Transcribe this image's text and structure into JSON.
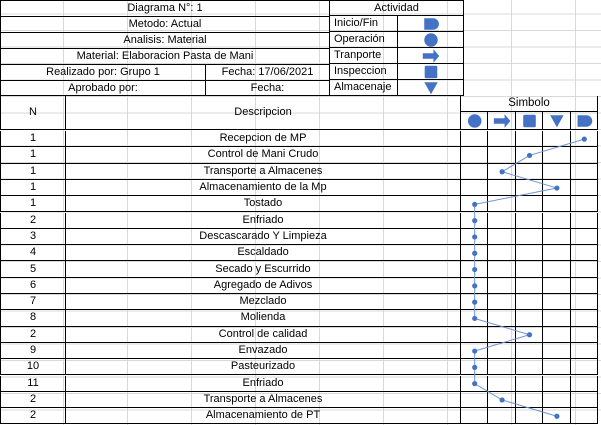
{
  "header": {
    "diagram": "Diagrama N°: 1",
    "method": "Metodo: Actual",
    "analysis": "Analisis: Material",
    "material": "Material: Elaboracion Pasta de Mani",
    "made_by": "Realizado por: Grupo 1",
    "date1": "Fecha: 17/06/2021",
    "approved_by": "Aprobado por:",
    "date2": "Fecha:"
  },
  "activity": {
    "title": "Actividad",
    "items": [
      {
        "label": "Inicio/Fin",
        "icon": "start-end-icon"
      },
      {
        "label": "Operación",
        "icon": "operation-circle-icon"
      },
      {
        "label": "Tranporte",
        "icon": "transport-arrow-icon"
      },
      {
        "label": "Inspeccion",
        "icon": "inspection-square-icon"
      },
      {
        "label": "Almacenaje",
        "icon": "storage-triangle-icon"
      }
    ]
  },
  "table": {
    "col_n": "N",
    "col_desc": "Descripcion",
    "col_symbol": "Simbolo",
    "symbol_icons": [
      "operation-circle-icon",
      "transport-arrow-icon",
      "inspection-square-icon",
      "storage-triangle-icon",
      "start-end-icon"
    ],
    "rows": [
      {
        "n": "1",
        "desc": "Recepcion de MP",
        "symbol": 4
      },
      {
        "n": "1",
        "desc": "Control de Mani Crudo",
        "symbol": 2
      },
      {
        "n": "1",
        "desc": "Transporte a Almacenes",
        "symbol": 1
      },
      {
        "n": "1",
        "desc": "Almacenamiento de la Mp",
        "symbol": 3
      },
      {
        "n": "1",
        "desc": "Tostado",
        "symbol": 0
      },
      {
        "n": "2",
        "desc": "Enfriado",
        "symbol": 0
      },
      {
        "n": "3",
        "desc": "Descascarado Y Limpieza",
        "symbol": 0
      },
      {
        "n": "4",
        "desc": "Escaldado",
        "symbol": 0
      },
      {
        "n": "5",
        "desc": "Secado y Escurrido",
        "symbol": 0
      },
      {
        "n": "6",
        "desc": "Agregado de Adivos",
        "symbol": 0
      },
      {
        "n": "7",
        "desc": "Mezclado",
        "symbol": 0
      },
      {
        "n": "8",
        "desc": "Molienda",
        "symbol": 0
      },
      {
        "n": "2",
        "desc": "Control de calidad",
        "symbol": 2
      },
      {
        "n": "9",
        "desc": "Envazado",
        "symbol": 0
      },
      {
        "n": "10",
        "desc": "Pasteurizado",
        "symbol": 0
      },
      {
        "n": "11",
        "desc": "Enfriado",
        "symbol": 0
      },
      {
        "n": "2",
        "desc": "Transporte a Almacenes",
        "symbol": 1
      },
      {
        "n": "2",
        "desc": "Almacenamiento de PT",
        "symbol": 3
      }
    ]
  },
  "colors": {
    "icon": "#4472c4",
    "line": "#6f93d1"
  }
}
